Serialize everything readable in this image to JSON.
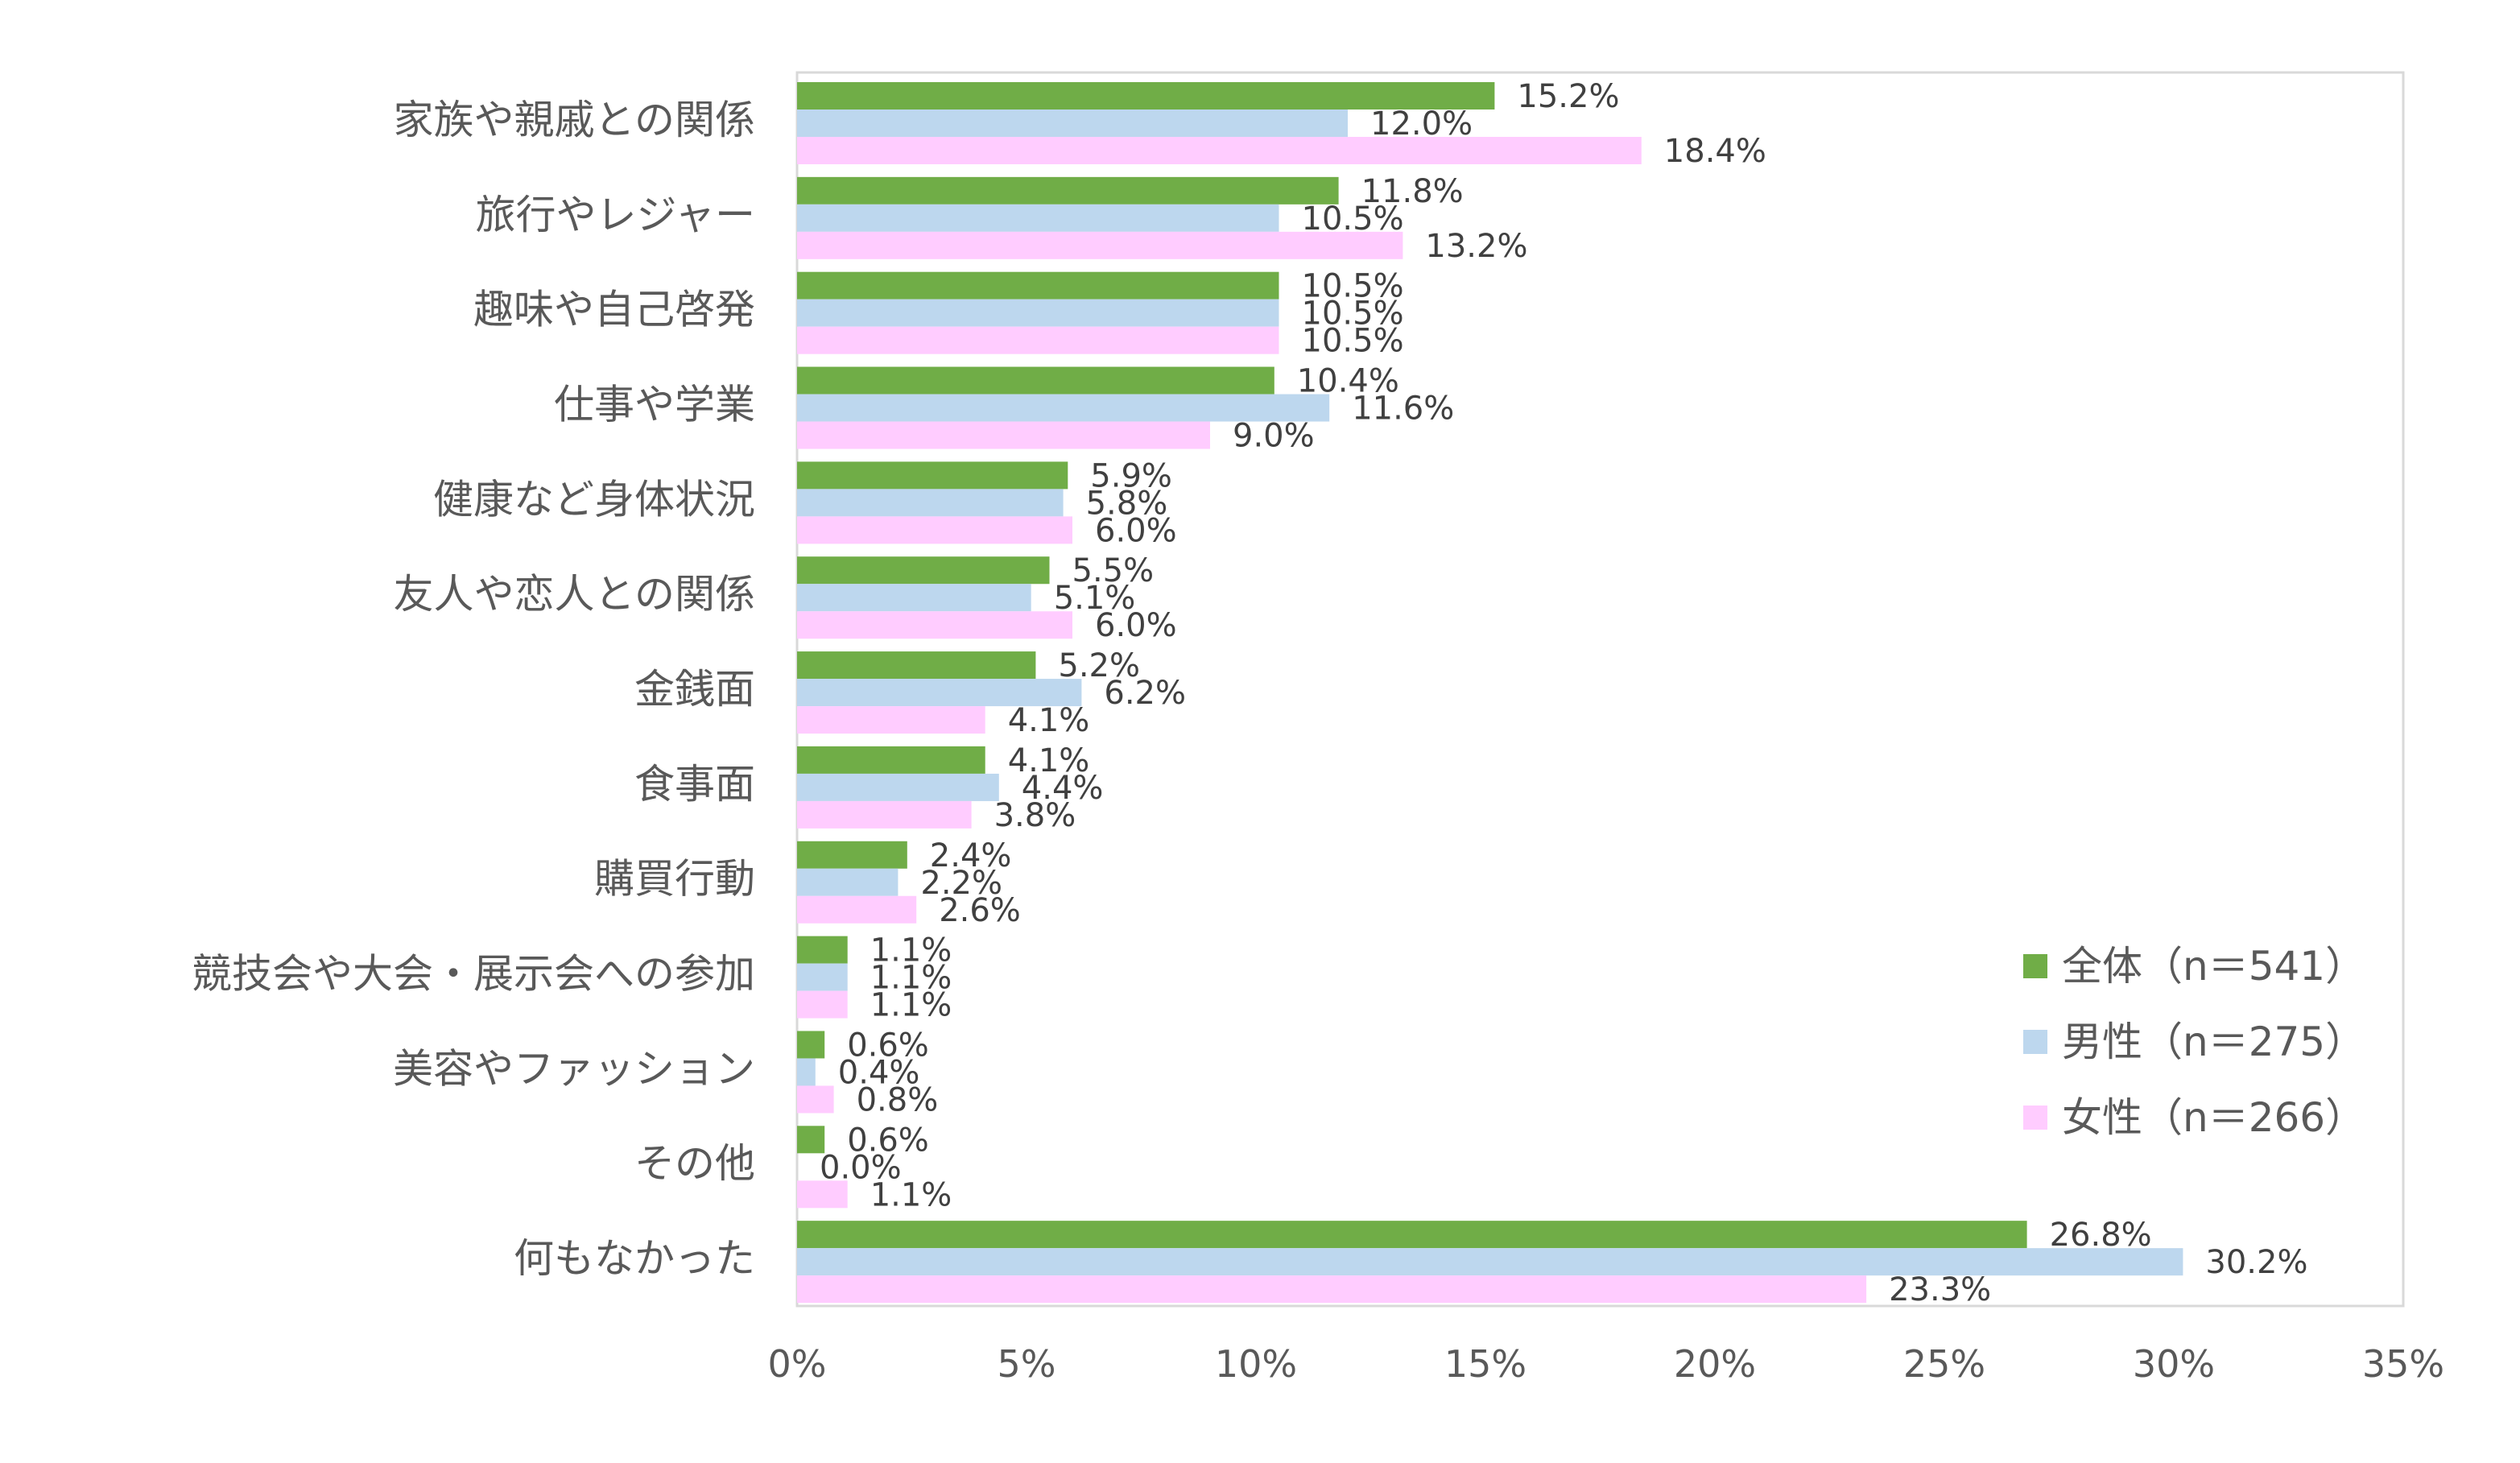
{
  "chart_data": {
    "type": "bar",
    "orientation": "horizontal",
    "categories": [
      "家族や親戚との関係",
      "旅行やレジャー",
      "趣味や自己啓発",
      "仕事や学業",
      "健康など身体状況",
      "友人や恋人との関係",
      "金銭面",
      "食事面",
      "購買行動",
      "競技会や大会・展示会への参加",
      "美容やファッション",
      "その他",
      "何もなかった"
    ],
    "series": [
      {
        "name": "全体（n＝541）",
        "color": "#70ad47",
        "values": [
          15.2,
          11.8,
          10.5,
          10.4,
          5.9,
          5.5,
          5.2,
          4.1,
          2.4,
          1.1,
          0.6,
          0.6,
          26.8
        ],
        "labels": [
          "15.2%",
          "11.8%",
          "10.5%",
          "10.4%",
          "5.9%",
          "5.5%",
          "5.2%",
          "4.1%",
          "2.4%",
          "1.1%",
          "0.6%",
          "0.6%",
          "26.8%"
        ]
      },
      {
        "name": "男性（n＝275）",
        "color": "#bdd7ee",
        "values": [
          12.0,
          10.5,
          10.5,
          11.6,
          5.8,
          5.1,
          6.2,
          4.4,
          2.2,
          1.1,
          0.4,
          0.0,
          30.2
        ],
        "labels": [
          "12.0%",
          "10.5%",
          "10.5%",
          "11.6%",
          "5.8%",
          "5.1%",
          "6.2%",
          "4.4%",
          "2.2%",
          "1.1%",
          "0.4%",
          "0.0%",
          "30.2%"
        ]
      },
      {
        "name": "女性（n＝266）",
        "color": "#ffccff",
        "values": [
          18.4,
          13.2,
          10.5,
          9.0,
          6.0,
          6.0,
          4.1,
          3.8,
          2.6,
          1.1,
          0.8,
          1.1,
          23.3
        ],
        "labels": [
          "18.4%",
          "13.2%",
          "10.5%",
          "9.0%",
          "6.0%",
          "6.0%",
          "4.1%",
          "3.8%",
          "2.6%",
          "1.1%",
          "0.8%",
          "1.1%",
          "23.3%"
        ]
      }
    ],
    "xlim": [
      0,
      35
    ],
    "x_ticks": [
      0,
      5,
      10,
      15,
      20,
      25,
      30,
      35
    ],
    "x_tick_labels": [
      "0%",
      "5%",
      "10%",
      "15%",
      "20%",
      "25%",
      "30%",
      "35%"
    ],
    "grid": false,
    "legend_position": "bottom-right inside plot",
    "title": "",
    "xlabel": "",
    "ylabel": ""
  }
}
